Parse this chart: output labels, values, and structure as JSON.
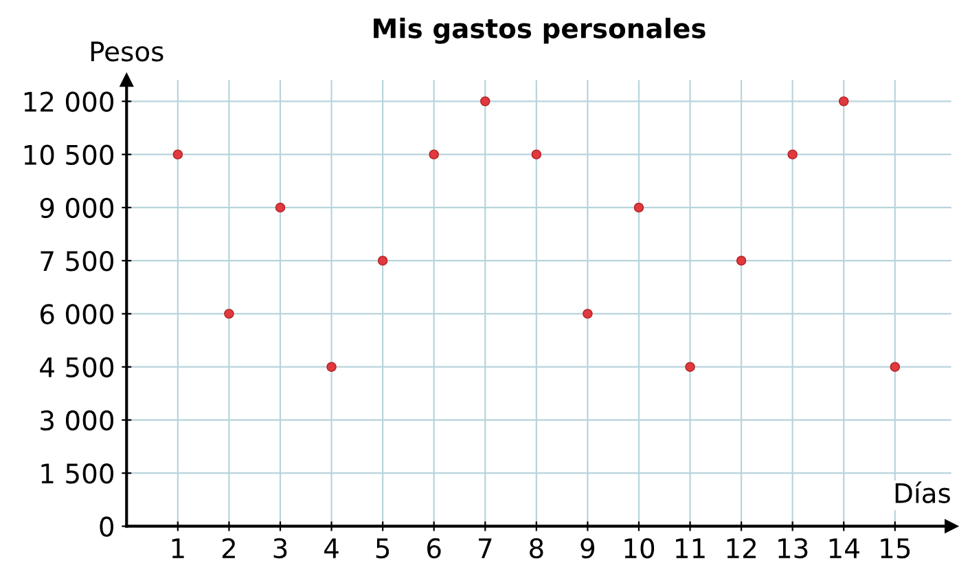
{
  "chart_data": {
    "type": "scatter",
    "title": "Mis gastos personales",
    "xlabel": "Días",
    "ylabel": "Pesos",
    "x": [
      1,
      2,
      3,
      4,
      5,
      6,
      7,
      8,
      9,
      10,
      11,
      12,
      13,
      14,
      15
    ],
    "values": [
      10500,
      6000,
      9000,
      4500,
      7500,
      10500,
      12000,
      10500,
      6000,
      9000,
      4500,
      7500,
      10500,
      12000,
      4500
    ],
    "color": "#e0393e",
    "marker": "circle",
    "xlim": [
      0,
      16.1
    ],
    "xticks": [
      1,
      2,
      3,
      4,
      5,
      6,
      7,
      8,
      9,
      10,
      11,
      12,
      13,
      14,
      15
    ],
    "ylim": [
      0,
      12600
    ],
    "yticks": [
      0,
      {
        "value": 1500,
        "label": "1 500"
      },
      {
        "value": 3000,
        "label": "3 000"
      },
      {
        "value": 4500,
        "label": "4 500"
      },
      {
        "value": 6000,
        "label": "6 000"
      },
      {
        "value": 7500,
        "label": "7 500"
      },
      {
        "value": 9000,
        "label": "9 000"
      },
      {
        "value": 10500,
        "label": "10 500"
      },
      {
        "value": 12000,
        "label": "12 000"
      }
    ],
    "grid": true
  }
}
